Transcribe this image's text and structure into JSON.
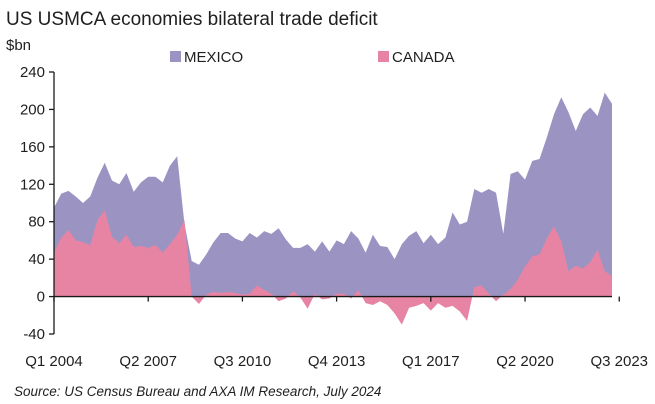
{
  "chart_data": {
    "type": "area",
    "title": "US USMCA economies bilateral trade deficit",
    "ylabel": "$bn",
    "xlabel": "",
    "ylim": [
      -40,
      240
    ],
    "yticks": [
      -40,
      0,
      40,
      80,
      120,
      160,
      200,
      240
    ],
    "grid": false,
    "legend_position": "top-center",
    "x_tick_labels": [
      "Q1 2004",
      "Q2 2007",
      "Q3 2010",
      "Q4 2013",
      "Q1 2017",
      "Q2 2020",
      "Q3 2023"
    ],
    "x_tick_indices": [
      0,
      13,
      26,
      39,
      52,
      65,
      78
    ],
    "series": [
      {
        "name": "MEXICO",
        "color": "#9b94c2",
        "values": [
          95,
          110,
          113,
          107,
          100,
          107,
          127,
          143,
          124,
          120,
          132,
          112,
          122,
          128,
          128,
          122,
          140,
          150,
          78,
          38,
          34,
          45,
          58,
          68,
          68,
          62,
          59,
          68,
          63,
          70,
          67,
          73,
          61,
          52,
          52,
          56,
          48,
          59,
          48,
          60,
          56,
          70,
          62,
          47,
          66,
          54,
          53,
          40,
          56,
          65,
          70,
          57,
          66,
          56,
          63,
          90,
          77,
          80,
          115,
          111,
          115,
          111,
          67,
          131,
          134,
          125,
          145,
          147,
          170,
          195,
          213,
          197,
          177,
          195,
          202,
          193,
          218,
          206
        ]
      },
      {
        "name": "CANADA",
        "color": "#e784a4",
        "values": [
          47,
          63,
          71,
          60,
          58,
          55,
          82,
          92,
          64,
          57,
          66,
          53,
          54,
          52,
          55,
          47,
          56,
          66,
          82,
          0,
          -8,
          2,
          5,
          4,
          5,
          4,
          2,
          3,
          12,
          7,
          3,
          -5,
          -2,
          6,
          -1,
          -13,
          3,
          -3,
          -2,
          3,
          3,
          -2,
          7,
          -7,
          -9,
          -5,
          -9,
          -18,
          -30,
          -12,
          -10,
          -7,
          -15,
          -7,
          -12,
          -10,
          -16,
          -26,
          10,
          12,
          3,
          -5,
          2,
          8,
          18,
          32,
          43,
          45,
          62,
          75,
          59,
          27,
          33,
          30,
          37,
          50,
          27,
          22
        ]
      }
    ]
  },
  "source": "Source: US Census Bureau and AXA IM Research, July 2024"
}
